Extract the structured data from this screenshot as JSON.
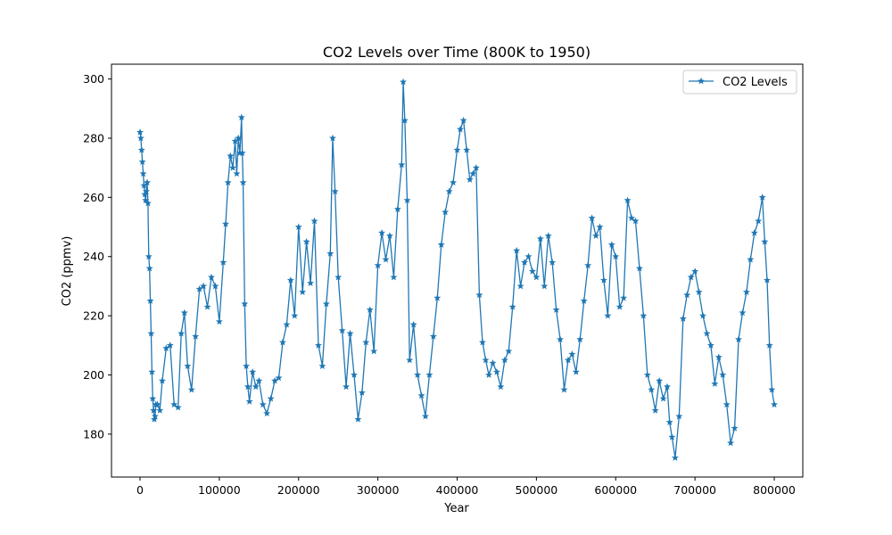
{
  "chart_data": {
    "type": "line",
    "title": "CO2 Levels over Time (800K to 1950)",
    "xlabel": "Year",
    "ylabel": "CO2 (ppmv)",
    "xlim": [
      -36000,
      836000
    ],
    "ylim": [
      165.5,
      305
    ],
    "xticks": [
      0,
      100000,
      200000,
      300000,
      400000,
      500000,
      600000,
      700000,
      800000
    ],
    "xtick_labels": [
      "0",
      "100000",
      "200000",
      "300000",
      "400000",
      "500000",
      "600000",
      "700000",
      "800000"
    ],
    "yticks": [
      180,
      200,
      220,
      240,
      260,
      280,
      300
    ],
    "ytick_labels": [
      "180",
      "200",
      "220",
      "240",
      "260",
      "280",
      "300"
    ],
    "grid": false,
    "legend": {
      "position": "top-right",
      "entries": [
        "CO2 Levels"
      ]
    },
    "marker": "star",
    "series": [
      {
        "name": "CO2 Levels",
        "color": "#1f77b4",
        "x": [
          0,
          1000,
          2000,
          3000,
          4000,
          5000,
          6000,
          7000,
          8000,
          9000,
          10000,
          11000,
          12000,
          13000,
          14000,
          15000,
          16000,
          17000,
          18000,
          19000,
          20000,
          22000,
          25000,
          28000,
          33000,
          38000,
          43000,
          48000,
          52000,
          56000,
          60000,
          65000,
          70000,
          75000,
          80000,
          85000,
          90000,
          95000,
          100000,
          105000,
          108000,
          111000,
          114000,
          117000,
          120000,
          122000,
          124000,
          126000,
          128000,
          129000,
          130000,
          132000,
          134000,
          136000,
          138000,
          142000,
          146000,
          150000,
          155000,
          160000,
          165000,
          170000,
          175000,
          180000,
          185000,
          190000,
          195000,
          200000,
          205000,
          210000,
          215000,
          220000,
          225000,
          230000,
          235000,
          240000,
          243000,
          246000,
          250000,
          255000,
          260000,
          265000,
          270000,
          275000,
          280000,
          285000,
          290000,
          295000,
          300000,
          305000,
          310000,
          315000,
          320000,
          325000,
          330000,
          332000,
          334000,
          337000,
          340000,
          345000,
          350000,
          355000,
          360000,
          365000,
          370000,
          375000,
          380000,
          385000,
          390000,
          395000,
          400000,
          404000,
          408000,
          412000,
          416000,
          420000,
          424000,
          428000,
          432000,
          436000,
          440000,
          445000,
          450000,
          455000,
          460000,
          465000,
          470000,
          475000,
          480000,
          485000,
          490000,
          495000,
          500000,
          505000,
          510000,
          515000,
          520000,
          525000,
          530000,
          535000,
          540000,
          545000,
          550000,
          555000,
          560000,
          565000,
          570000,
          575000,
          580000,
          585000,
          590000,
          595000,
          600000,
          605000,
          610000,
          615000,
          620000,
          625000,
          630000,
          635000,
          640000,
          645000,
          650000,
          655000,
          660000,
          665000,
          668000,
          671000,
          675000,
          680000,
          685000,
          690000,
          695000,
          700000,
          705000,
          710000,
          715000,
          720000,
          725000,
          730000,
          735000,
          740000,
          745000,
          750000,
          755000,
          760000,
          765000,
          770000,
          775000,
          780000,
          785000,
          788000,
          791000,
          794000,
          797000,
          800000
        ],
        "y": [
          282,
          280,
          276,
          272,
          268,
          264,
          261,
          259,
          262,
          265,
          258,
          240,
          236,
          225,
          214,
          201,
          192,
          188,
          185,
          186,
          190,
          190,
          188,
          198,
          209,
          210,
          190,
          189,
          214,
          221,
          203,
          195,
          213,
          229,
          230,
          223,
          233,
          230,
          218,
          238,
          251,
          265,
          274,
          270,
          279,
          268,
          280,
          275,
          287,
          275,
          265,
          224,
          203,
          196,
          191,
          201,
          196,
          198,
          190,
          187,
          192,
          198,
          199,
          211,
          217,
          232,
          220,
          250,
          228,
          245,
          231,
          252,
          210,
          203,
          224,
          241,
          280,
          262,
          233,
          215,
          196,
          214,
          200,
          185,
          194,
          211,
          222,
          208,
          237,
          248,
          239,
          247,
          233,
          256,
          271,
          299,
          286,
          259,
          205,
          217,
          200,
          193,
          186,
          200,
          213,
          226,
          244,
          255,
          262,
          265,
          276,
          283,
          286,
          276,
          266,
          268,
          270,
          227,
          211,
          205,
          200,
          204,
          201,
          196,
          205,
          208,
          223,
          242,
          230,
          238,
          240,
          235,
          233,
          246,
          230,
          247,
          238,
          222,
          212,
          195,
          205,
          207,
          201,
          212,
          225,
          237,
          253,
          247,
          250,
          232,
          220,
          244,
          240,
          223,
          226,
          259,
          253,
          252,
          236,
          220,
          200,
          195,
          188,
          198,
          192,
          196,
          184,
          179,
          172,
          186,
          219,
          227,
          233,
          235,
          228,
          220,
          214,
          210,
          197,
          206,
          200,
          190,
          177,
          182,
          212,
          221,
          228,
          239,
          248,
          252,
          260,
          245,
          232,
          210,
          195,
          190
        ]
      }
    ]
  }
}
